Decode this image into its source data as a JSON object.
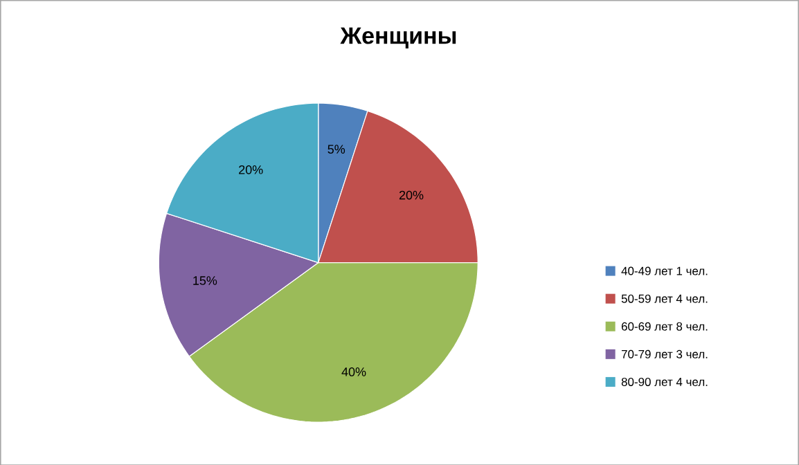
{
  "chart_data": {
    "type": "pie",
    "title": "Женщины",
    "categories": [
      "40-49 лет 1 чел.",
      "50-59 лет 4 чел.",
      "60-69 лет 8 чел.",
      "70-79 лет 3 чел.",
      "80-90 лет 4 чел."
    ],
    "values": [
      5,
      20,
      40,
      15,
      20
    ],
    "value_labels": [
      "5%",
      "20%",
      "40%",
      "15%",
      "20%"
    ],
    "colors": [
      "#4f81bd",
      "#c0504d",
      "#9bbb59",
      "#8064a2",
      "#4bacc6"
    ],
    "legend": "right"
  }
}
